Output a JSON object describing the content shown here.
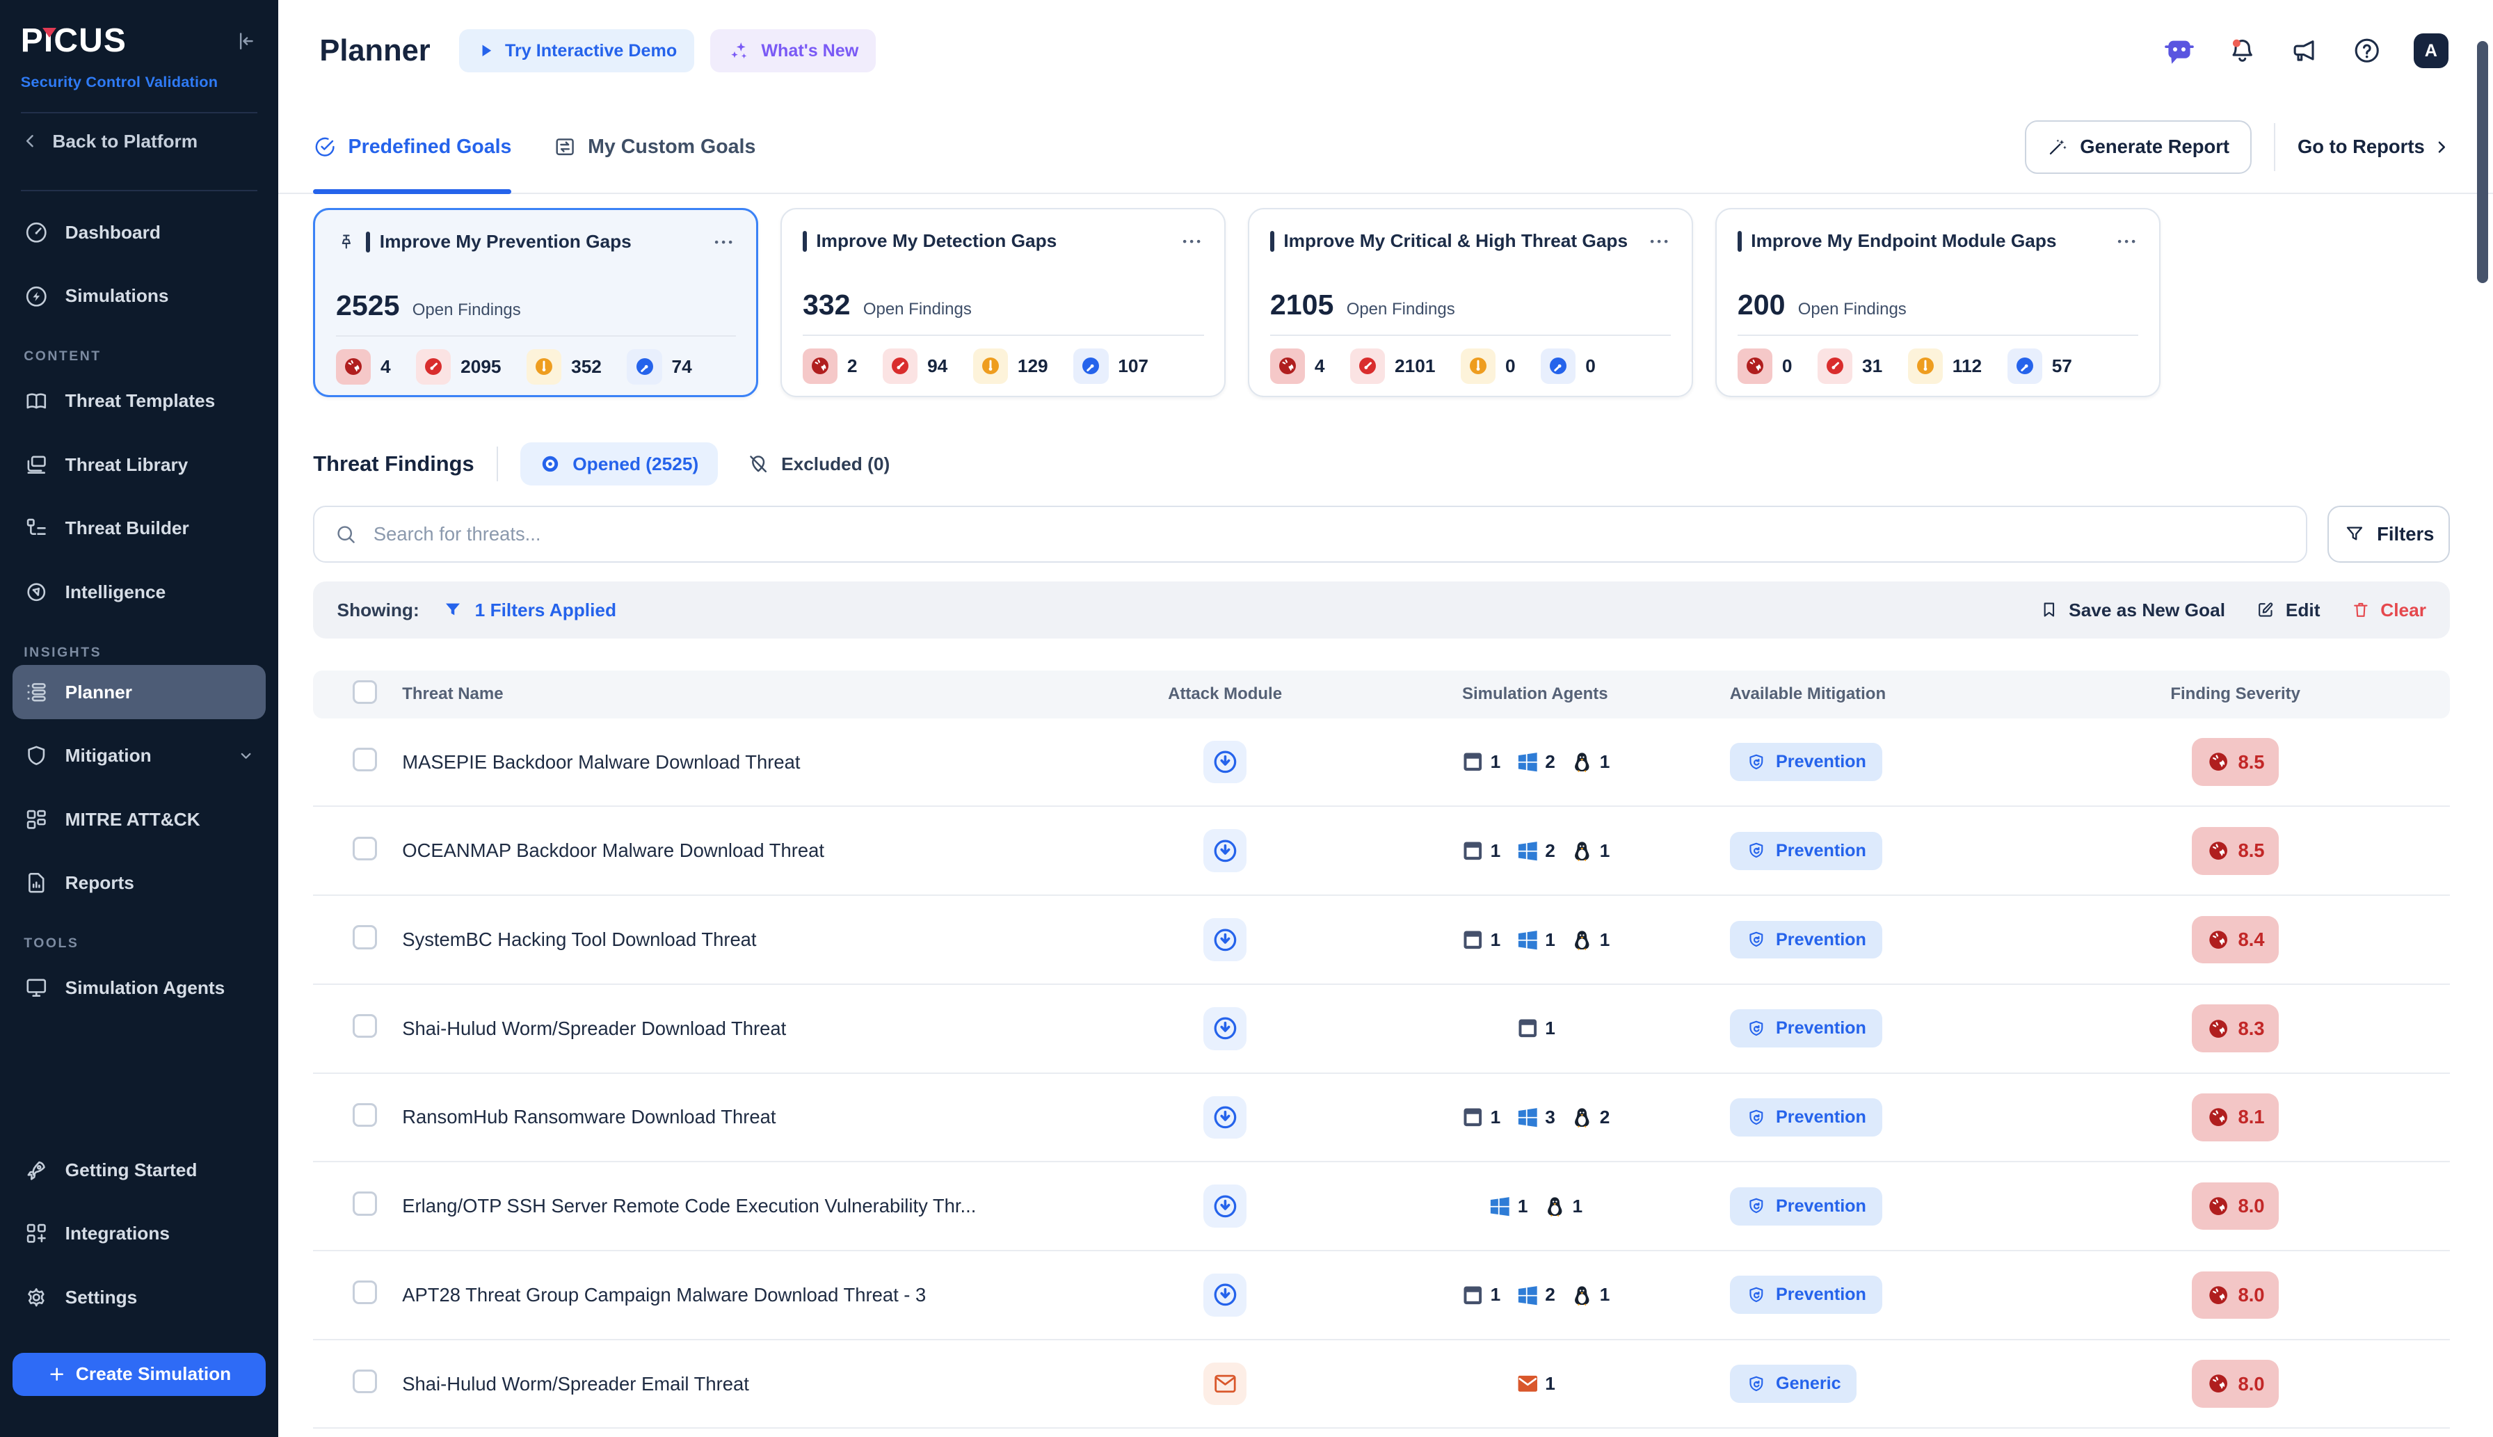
{
  "brand": {
    "logo": "PICUS",
    "product": "Security Control Validation",
    "back": "Back to Platform"
  },
  "sidebar": {
    "sections": [
      {
        "label": null,
        "items": [
          {
            "icon": "dashboard",
            "label": "Dashboard"
          },
          {
            "icon": "simulations",
            "label": "Simulations"
          }
        ]
      },
      {
        "label": "CONTENT",
        "items": [
          {
            "icon": "templates",
            "label": "Threat Templates"
          },
          {
            "icon": "library",
            "label": "Threat Library"
          },
          {
            "icon": "builder",
            "label": "Threat Builder"
          },
          {
            "icon": "intelligence",
            "label": "Intelligence"
          }
        ]
      },
      {
        "label": "INSIGHTS",
        "items": [
          {
            "icon": "planner",
            "label": "Planner",
            "active": true
          },
          {
            "icon": "mitigation",
            "label": "Mitigation",
            "chevron": true
          },
          {
            "icon": "mitre",
            "label": "MITRE ATT&CK"
          },
          {
            "icon": "reports",
            "label": "Reports"
          }
        ]
      },
      {
        "label": "TOOLS",
        "items": [
          {
            "icon": "agents",
            "label": "Simulation Agents"
          }
        ]
      }
    ],
    "footer_items": [
      {
        "icon": "rocket",
        "label": "Getting Started"
      },
      {
        "icon": "integrations",
        "label": "Integrations"
      },
      {
        "icon": "settings",
        "label": "Settings"
      }
    ],
    "create_label": "Create Simulation"
  },
  "header": {
    "title": "Planner",
    "demo": "Try Interactive Demo",
    "whats_new": "What's New",
    "avatar": "A"
  },
  "tabs": {
    "predefined": "Predefined Goals",
    "custom": "My Custom Goals"
  },
  "actions": {
    "generate_report": "Generate Report",
    "go_to_reports": "Go to Reports"
  },
  "cards": [
    {
      "title": "Improve My Prevention Gaps",
      "pinned": true,
      "selected": true,
      "count": "2525",
      "count_label": "Open Findings",
      "stats": {
        "critical": "4",
        "high": "2095",
        "medium": "352",
        "low": "74"
      }
    },
    {
      "title": "Improve My Detection Gaps",
      "count": "332",
      "count_label": "Open Findings",
      "stats": {
        "critical": "2",
        "high": "94",
        "medium": "129",
        "low": "107"
      }
    },
    {
      "title": "Improve My Critical & High Threat Gaps",
      "count": "2105",
      "count_label": "Open Findings",
      "stats": {
        "critical": "4",
        "high": "2101",
        "medium": "0",
        "low": "0"
      }
    },
    {
      "title": "Improve My Endpoint Module Gaps",
      "count": "200",
      "count_label": "Open Findings",
      "stats": {
        "critical": "0",
        "high": "31",
        "medium": "112",
        "low": "57"
      }
    }
  ],
  "findings": {
    "title": "Threat Findings",
    "opened": "Opened (2525)",
    "excluded": "Excluded (0)",
    "search_placeholder": "Search for threats...",
    "filters": "Filters",
    "showing": "Showing:",
    "applied": "1 Filters Applied",
    "save": "Save as New Goal",
    "edit": "Edit",
    "clear": "Clear"
  },
  "table": {
    "columns": [
      "Threat Name",
      "Attack Module",
      "Simulation Agents",
      "Available Mitigation",
      "Finding Severity"
    ],
    "rows": [
      {
        "name": "MASEPIE Backdoor Malware Download Threat",
        "module": "download",
        "agents": [
          {
            "type": "monitor",
            "count": "1"
          },
          {
            "type": "windows",
            "count": "2"
          },
          {
            "type": "linux",
            "count": "1"
          }
        ],
        "mitigation": "Prevention",
        "severity": "8.5"
      },
      {
        "name": "OCEANMAP Backdoor Malware Download Threat",
        "module": "download",
        "agents": [
          {
            "type": "monitor",
            "count": "1"
          },
          {
            "type": "windows",
            "count": "2"
          },
          {
            "type": "linux",
            "count": "1"
          }
        ],
        "mitigation": "Prevention",
        "severity": "8.5"
      },
      {
        "name": "SystemBC Hacking Tool Download Threat",
        "module": "download",
        "agents": [
          {
            "type": "monitor",
            "count": "1"
          },
          {
            "type": "windows",
            "count": "1"
          },
          {
            "type": "linux",
            "count": "1"
          }
        ],
        "mitigation": "Prevention",
        "severity": "8.4"
      },
      {
        "name": "Shai-Hulud Worm/Spreader Download Threat",
        "module": "download",
        "agents": [
          {
            "type": "monitor",
            "count": "1"
          }
        ],
        "mitigation": "Prevention",
        "severity": "8.3"
      },
      {
        "name": "RansomHub Ransomware Download Threat",
        "module": "download",
        "agents": [
          {
            "type": "monitor",
            "count": "1"
          },
          {
            "type": "windows",
            "count": "3"
          },
          {
            "type": "linux",
            "count": "2"
          }
        ],
        "mitigation": "Prevention",
        "severity": "8.1"
      },
      {
        "name": "Erlang/OTP SSH Server Remote Code Execution Vulnerability Thr...",
        "module": "download",
        "agents": [
          {
            "type": "windows",
            "count": "1"
          },
          {
            "type": "linux",
            "count": "1"
          }
        ],
        "mitigation": "Prevention",
        "severity": "8.0"
      },
      {
        "name": "APT28 Threat Group Campaign Malware Download Threat - 3",
        "module": "download",
        "agents": [
          {
            "type": "monitor",
            "count": "1"
          },
          {
            "type": "windows",
            "count": "2"
          },
          {
            "type": "linux",
            "count": "1"
          }
        ],
        "mitigation": "Prevention",
        "severity": "8.0"
      },
      {
        "name": "Shai-Hulud Worm/Spreader Email Threat",
        "module": "email",
        "agents": [
          {
            "type": "mail",
            "count": "1"
          }
        ],
        "mitigation": "Generic",
        "severity": "8.0"
      }
    ]
  },
  "colors": {
    "accent": "#2563eb",
    "sidebar": "#0d1a2b",
    "critical": "#b01e1e",
    "high": "#d92d2d",
    "medium": "#ee9d1f",
    "low": "#2563eb",
    "danger": "#e5484d"
  }
}
